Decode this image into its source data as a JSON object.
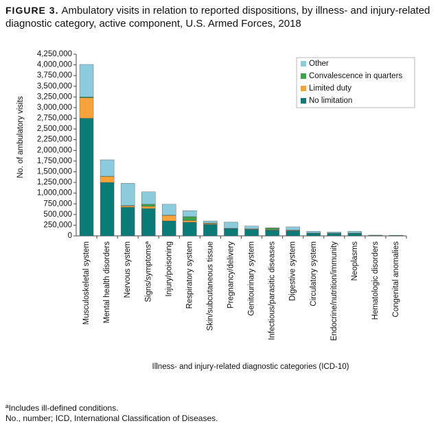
{
  "chart_data": {
    "type": "stacked-bar",
    "title_label": "FIGURE 3.",
    "title": "Ambulatory visits in relation to reported dispositions, by illness- and injury-related diagnostic category, active component, U.S. Armed Forces, 2018",
    "y_label": "No. of ambulatory visits",
    "x_label": "Illness- and injury-related diagnostic categories (ICD-10)",
    "footnotes": [
      "ªIncludes ill-defined conditions.",
      "No., number; ICD, International Classification of Diseases."
    ],
    "categories": [
      "Musculoskeletal system",
      "Mental health disorders",
      "Nervous system",
      "Signs/symptomsª",
      "Injury/poisoning",
      "Respiratory system",
      "Skin/subcutaneous tissue",
      "Pregnancy/delivery",
      "Genitourinary system",
      "Infectious/parasitic diseases",
      "Digestive system",
      "Circulatory system",
      "Endocrine/nutrition/immunity",
      "Neoplasms",
      "Hematologic disorders",
      "Congenital anomalies"
    ],
    "series": [
      {
        "name": "No limitation",
        "color": "#0b7b78",
        "values": [
          2750000,
          1250000,
          670000,
          640000,
          350000,
          320000,
          270000,
          170000,
          150000,
          130000,
          120000,
          60000,
          60000,
          60000,
          10000,
          10000
        ]
      },
      {
        "name": "Limited duty",
        "color": "#f7a23b",
        "values": [
          480000,
          140000,
          30000,
          50000,
          130000,
          40000,
          20000,
          5000,
          10000,
          10000,
          10000,
          5000,
          3000,
          5000,
          2000,
          1000
        ]
      },
      {
        "name": "Convalescence in quarters",
        "color": "#3fa14a",
        "values": [
          20000,
          5000,
          10000,
          50000,
          5000,
          90000,
          10000,
          2000,
          5000,
          40000,
          5000,
          2000,
          2000,
          1000,
          1000,
          1000
        ]
      },
      {
        "name": "Other",
        "color": "#8ccbdb",
        "values": [
          760000,
          385000,
          520000,
          290000,
          255000,
          140000,
          50000,
          145000,
          65000,
          10000,
          75000,
          40000,
          25000,
          40000,
          5000,
          3000
        ]
      }
    ],
    "ylim": [
      0,
      4250000
    ],
    "yticks": [
      0,
      {
        "value": 250000,
        "label": "250,000"
      },
      {
        "value": 500000,
        "label": "500,000"
      },
      {
        "value": 750000,
        "label": "750,000"
      },
      {
        "value": 1000000,
        "label": "1,000,000"
      },
      {
        "value": 1250000,
        "label": "1,250,000"
      },
      {
        "value": 1500000,
        "label": "1,500,000"
      },
      {
        "value": 1750000,
        "label": "1,750,000"
      },
      {
        "value": 2000000,
        "label": "2,000,000"
      },
      {
        "value": 2250000,
        "label": "2,250,000"
      },
      {
        "value": 2500000,
        "label": "2,500,000"
      },
      {
        "value": 2750000,
        "label": "2,750,000"
      },
      {
        "value": 3000000,
        "label": "3,000,000"
      },
      {
        "value": 3250000,
        "label": "3,250,000"
      },
      {
        "value": 3500000,
        "label": "3,500,000"
      },
      {
        "value": 3750000,
        "label": "3,750,000"
      },
      {
        "value": 4000000,
        "label": "4,000,000"
      },
      {
        "value": 4250000,
        "label": "4,250,000"
      }
    ],
    "legend": "upper right"
  }
}
